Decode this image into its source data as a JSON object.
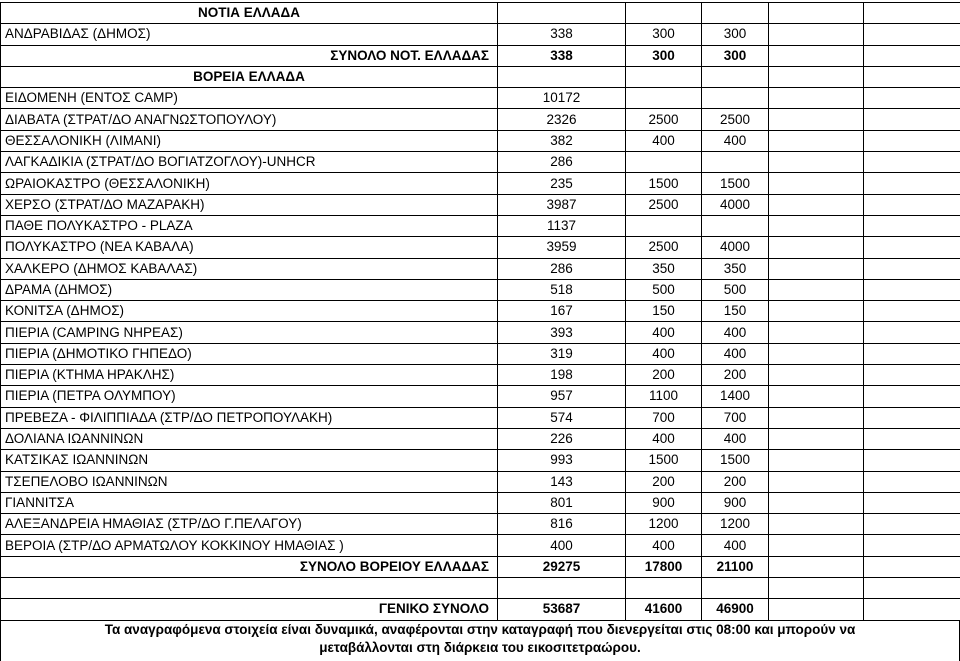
{
  "rows": [
    {
      "type": "section",
      "label": "ΝΟΤΙΑ ΕΛΛΑΔΑ",
      "values": [
        "",
        "",
        ""
      ]
    },
    {
      "type": "item",
      "label": "ΑΝΔΡΑΒΙΔΑΣ (ΔΗΜΟΣ)",
      "values": [
        "338",
        "300",
        "300"
      ]
    },
    {
      "type": "total",
      "label": "ΣΥΝΟΛΟ ΝΟΤ. ΕΛΛΑΔΑΣ",
      "values": [
        "338",
        "300",
        "300"
      ]
    },
    {
      "type": "section",
      "label": "ΒΟΡΕΙΑ ΕΛΛΑΔΑ",
      "values": [
        "",
        "",
        ""
      ]
    },
    {
      "type": "item",
      "label": "ΕΙΔΟΜΕΝΗ (ΕΝΤΟΣ CAMP)",
      "values": [
        "10172",
        "",
        ""
      ]
    },
    {
      "type": "item",
      "label": "ΔΙΑΒΑΤΑ (ΣΤΡΑΤ/ΔΟ ΑΝΑΓΝΩΣΤΟΠΟΥΛΟΥ)",
      "values": [
        "2326",
        "2500",
        "2500"
      ]
    },
    {
      "type": "item",
      "label": "ΘΕΣΣΑΛΟΝΙΚΗ (ΛΙΜΑΝΙ)",
      "values": [
        "382",
        "400",
        "400"
      ]
    },
    {
      "type": "item",
      "label": "ΛΑΓΚΑΔΙΚΙΑ (ΣΤΡΑΤ/ΔΟ ΒΟΓΙΑΤΖΟΓΛΟΥ)-UNHCR",
      "values": [
        "286",
        "",
        ""
      ]
    },
    {
      "type": "item",
      "label": "ΩΡΑΙΟΚΑΣΤΡΟ (ΘΕΣΣΑΛΟΝΙΚΗ)",
      "values": [
        "235",
        "1500",
        "1500"
      ]
    },
    {
      "type": "item",
      "label": "ΧΕΡΣΟ (ΣΤΡΑΤ/ΔΟ ΜΑΖΑΡΑΚΗ)",
      "values": [
        "3987",
        "2500",
        "4000"
      ]
    },
    {
      "type": "item",
      "label": "ΠΑΘΕ ΠΟΛΥΚΑΣΤΡΟ - PLAZA",
      "values": [
        "1137",
        "",
        ""
      ]
    },
    {
      "type": "item",
      "label": "ΠΟΛΥΚΑΣΤΡΟ (ΝΕΑ ΚΑΒΑΛΑ)",
      "values": [
        "3959",
        "2500",
        "4000"
      ]
    },
    {
      "type": "item",
      "label": "ΧΑΛΚΕΡΟ (ΔΗΜΟΣ ΚΑΒΑΛΑΣ)",
      "values": [
        "286",
        "350",
        "350"
      ]
    },
    {
      "type": "item",
      "label": "ΔΡΑΜΑ (ΔΗΜΟΣ)",
      "values": [
        "518",
        "500",
        "500"
      ]
    },
    {
      "type": "item",
      "label": "ΚΟΝΙΤΣΑ (ΔΗΜΟΣ)",
      "values": [
        "167",
        "150",
        "150"
      ]
    },
    {
      "type": "item",
      "label": "ΠΙΕΡΙΑ (CAMPING ΝΗΡΕΑΣ)",
      "values": [
        "393",
        "400",
        "400"
      ]
    },
    {
      "type": "item",
      "label": "ΠΙΕΡΙΑ (ΔΗΜΟΤΙΚΟ ΓΗΠΕΔΟ)",
      "values": [
        "319",
        "400",
        "400"
      ]
    },
    {
      "type": "item",
      "label": "ΠΙΕΡΙΑ (ΚΤΗΜΑ ΗΡΑΚΛΗΣ)",
      "values": [
        "198",
        "200",
        "200"
      ]
    },
    {
      "type": "item",
      "label": "ΠΙΕΡΙΑ (ΠΕΤΡΑ ΟΛΥΜΠΟΥ)",
      "values": [
        "957",
        "1100",
        "1400"
      ]
    },
    {
      "type": "item",
      "label": "ΠΡΕΒΕΖΑ - ΦΙΛΙΠΠΙΑΔΑ (ΣΤΡ/ΔΟ ΠΕΤΡΟΠΟΥΛΑΚΗ)",
      "values": [
        "574",
        "700",
        "700"
      ]
    },
    {
      "type": "item",
      "label": "ΔΟΛΙΑΝΑ ΙΩΑΝΝΙΝΩΝ",
      "values": [
        "226",
        "400",
        "400"
      ]
    },
    {
      "type": "item",
      "label": "ΚΑΤΣΙΚΑΣ ΙΩΑΝΝΙΝΩΝ",
      "values": [
        "993",
        "1500",
        "1500"
      ]
    },
    {
      "type": "item",
      "label": "ΤΣΕΠΕΛΟΒΟ ΙΩΑΝΝΙΝΩΝ",
      "values": [
        "143",
        "200",
        "200"
      ]
    },
    {
      "type": "item",
      "label": "ΓΙΑΝΝΙΤΣΑ",
      "values": [
        "801",
        "900",
        "900"
      ]
    },
    {
      "type": "item",
      "label": "ΑΛΕΞΑΝΔΡΕΙΑ ΗΜΑΘΙΑΣ (ΣΤΡ/ΔΟ Γ.ΠΕΛΑΓΟΥ)",
      "values": [
        "816",
        "1200",
        "1200"
      ]
    },
    {
      "type": "item",
      "label": "ΒΕΡΟΙΑ (ΣΤΡ/ΔΟ ΑΡΜΑΤΩΛΟΥ ΚΟΚΚΙΝΟΥ ΗΜΑΘΙΑΣ )",
      "values": [
        "400",
        "400",
        "400"
      ]
    },
    {
      "type": "total",
      "label": "ΣΥΝΟΛΟ ΒΟΡΕΙΟΥ ΕΛΛΑΔΑΣ",
      "values": [
        "29275",
        "17800",
        "21100"
      ]
    },
    {
      "type": "empty",
      "label": "",
      "values": [
        "",
        "",
        ""
      ]
    },
    {
      "type": "total",
      "label": "ΓΕΝΙΚΟ ΣΥΝΟΛΟ",
      "values": [
        "53687",
        "41600",
        "46900"
      ]
    }
  ],
  "note_line1": "Τα αναγραφόμενα στοιχεία είναι δυναμικά, αναφέρονται στην καταγραφή που διενεργείται στις 08:00 και  μπορούν να",
  "note_line2": "μεταβάλλονται στη διάρκεια του εικοσιτετραώρου."
}
